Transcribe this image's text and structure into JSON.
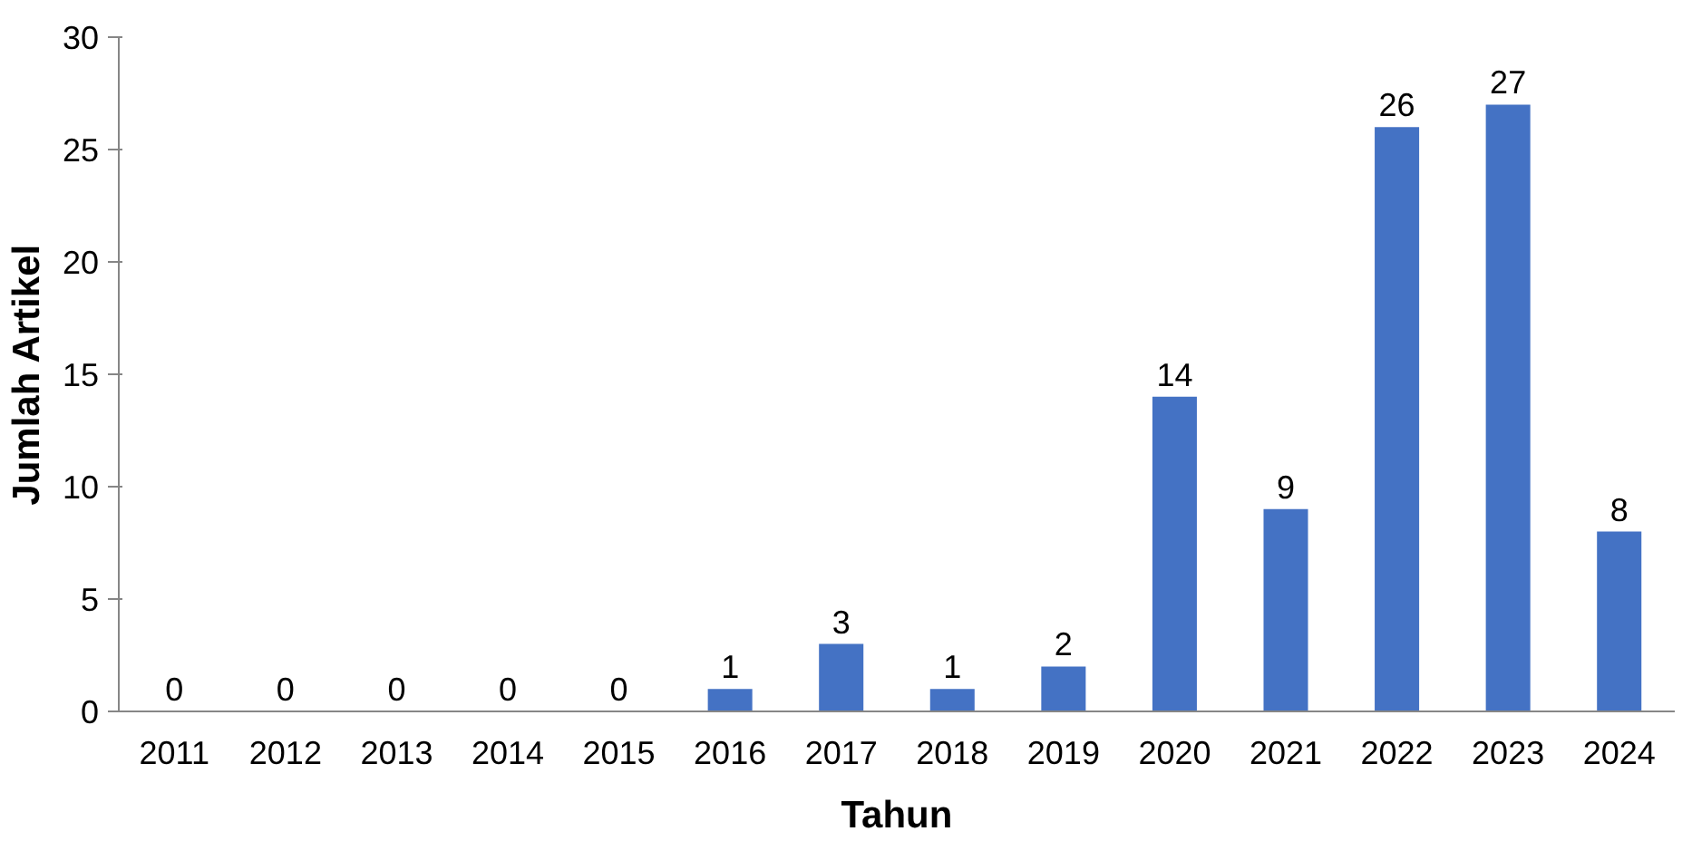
{
  "chart_data": {
    "type": "bar",
    "xlabel": "Tahun",
    "ylabel": "Jumlah Artikel",
    "categories": [
      "2011",
      "2012",
      "2013",
      "2014",
      "2015",
      "2016",
      "2017",
      "2018",
      "2019",
      "2020",
      "2021",
      "2022",
      "2023",
      "2024"
    ],
    "values": [
      0,
      0,
      0,
      0,
      0,
      1,
      3,
      1,
      2,
      14,
      9,
      26,
      27,
      8
    ],
    "color": "#4472c4",
    "ylim": [
      0,
      30
    ],
    "yticks": [
      0,
      5,
      10,
      15,
      20,
      25,
      30
    ],
    "data_labels": true,
    "grid": false
  }
}
